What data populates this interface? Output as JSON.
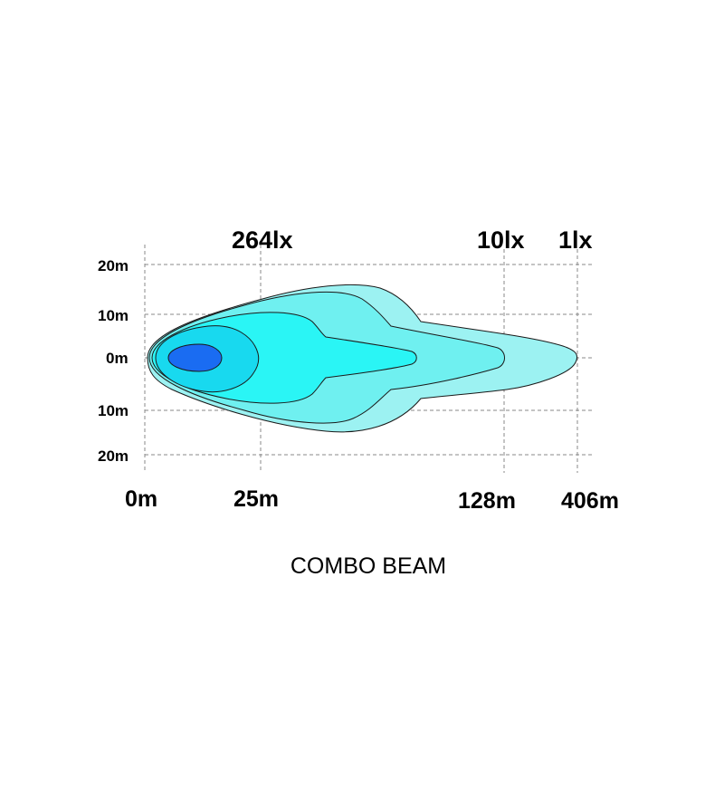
{
  "lux_labels": {
    "zone_25m": "264lx",
    "zone_128m": "10lx",
    "zone_406m": "1lx"
  },
  "width_labels": {
    "top_20m": "20m",
    "top_10m": "10m",
    "center_0m": "0m",
    "bottom_10m": "10m",
    "bottom_20m": "20m"
  },
  "distance_labels": {
    "d0": "0m",
    "d25": "25m",
    "d128": "128m",
    "d406": "406m"
  },
  "title": "COMBO BEAM",
  "colors": {
    "contour_1lx": "#9cf2f2",
    "contour_10lx": "#6ff0f0",
    "contour_mid": "#2af5f5",
    "contour_high": "#18d9ef",
    "contour_264lx": "#1a6cf2",
    "grid": "#8a8a8a",
    "outline": "#1a1a1a"
  }
}
